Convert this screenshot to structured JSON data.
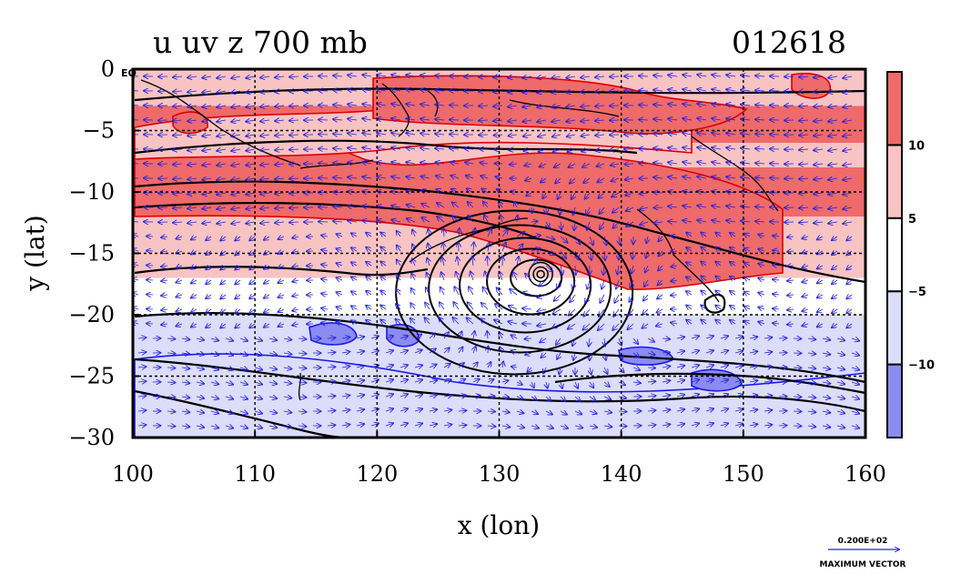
{
  "chart_data": {
    "type": "heatmap",
    "title": "u uv z 700 mb",
    "subtitle": "012618",
    "xlabel": "x (lon)",
    "ylabel": "y (lat)",
    "xlim": [
      100,
      160
    ],
    "ylim": [
      -30,
      0
    ],
    "x_ticks": [
      {
        "value": 100,
        "label": "100"
      },
      {
        "value": 110,
        "label": "110"
      },
      {
        "value": 120,
        "label": "120"
      },
      {
        "value": 130,
        "label": "130"
      },
      {
        "value": 140,
        "label": "140"
      },
      {
        "value": 150,
        "label": "150"
      },
      {
        "value": 160,
        "label": "160"
      }
    ],
    "y_ticks": [
      {
        "value": 0,
        "label": "0"
      },
      {
        "value": -5,
        "label": "−5"
      },
      {
        "value": -10,
        "label": "−10"
      },
      {
        "value": -15,
        "label": "−15"
      },
      {
        "value": -20,
        "label": "−20"
      },
      {
        "value": -25,
        "label": "−25"
      },
      {
        "value": -30,
        "label": "−30"
      }
    ],
    "corner_label": "EQ",
    "grid": true,
    "grid_lon": [
      110,
      120,
      130,
      140,
      150
    ],
    "grid_lat": [
      -5,
      -10,
      -15,
      -20,
      -25
    ],
    "colorbar": {
      "levels": [
        -15,
        -10,
        -5,
        5,
        10,
        15
      ],
      "colors": [
        "#8b8bf2",
        "#dcdcfb",
        "#ffffff",
        "#f8c3c3",
        "#ef6a6a"
      ],
      "tick_labels": [
        {
          "value": -10,
          "label": "−10"
        },
        {
          "value": -5,
          "label": "−5"
        },
        {
          "value": 5,
          "label": "5"
        },
        {
          "value": 10,
          "label": "10"
        }
      ]
    },
    "bands": [
      {
        "lat_top": 0,
        "lat_bottom": -3,
        "u_class": 3
      },
      {
        "lat_top": -3,
        "lat_bottom": -6,
        "u_class": 4
      },
      {
        "lat_top": -6,
        "lat_bottom": -8,
        "u_class": 3
      },
      {
        "lat_top": -8,
        "lat_bottom": -12,
        "u_class": 4
      },
      {
        "lat_top": -12,
        "lat_bottom": -17,
        "u_class": 3
      },
      {
        "lat_top": -17,
        "lat_bottom": -20,
        "u_class": 2
      },
      {
        "lat_top": -20,
        "lat_bottom": -27,
        "u_class": 1
      },
      {
        "lat_top": -27,
        "lat_bottom": -30,
        "u_class": 1
      }
    ],
    "cyclone_center": {
      "lon": 133.4,
      "lat": -16.7
    },
    "vector_scale": {
      "value_label": "0.200E+02",
      "caption": "MAXIMUM VECTOR"
    },
    "colors": {
      "vector": "#2222dd",
      "positive_contour": "#dd0000",
      "negative_contour": "#1a1ae6",
      "height_contour": "#000000"
    }
  }
}
